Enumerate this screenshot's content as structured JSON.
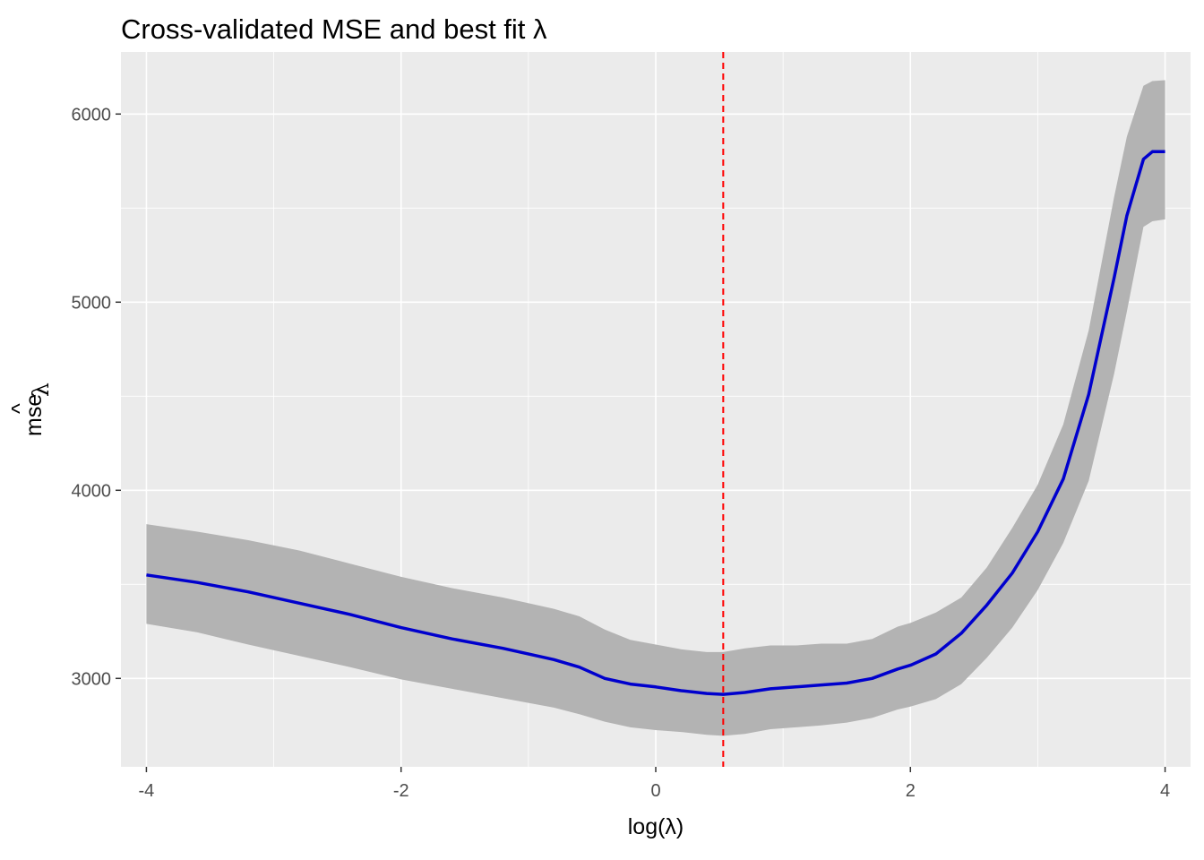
{
  "chart_data": {
    "type": "line",
    "title": "Cross-validated MSE and best fit λ",
    "xlabel": "log(λ)",
    "ylabel": "mse_λ (hat)",
    "ylabel_parts": {
      "base": "mse",
      "hat": "^",
      "sub": "λ"
    },
    "xlim": [
      -4.2,
      4.2
    ],
    "ylim": [
      2530,
      6330
    ],
    "x_ticks": [
      -4,
      -2,
      0,
      2,
      4
    ],
    "x_tick_labels": [
      "-4",
      "-2",
      "0",
      "2",
      "4"
    ],
    "y_ticks": [
      3000,
      4000,
      5000,
      6000
    ],
    "y_tick_labels": [
      "3000",
      "4000",
      "5000",
      "6000"
    ],
    "grid": true,
    "best_lambda_log": 0.53,
    "colors": {
      "panel": "#ebebeb",
      "grid": "#ffffff",
      "ribbon": "#b3b3b3",
      "line": "#0000cd",
      "vline": "#ff0000"
    },
    "series": [
      {
        "x": [
          -4.0,
          -3.6,
          -3.2,
          -2.8,
          -2.4,
          -2.0,
          -1.6,
          -1.2,
          -0.8,
          -0.6,
          -0.4,
          -0.2,
          0.0,
          0.2,
          0.4,
          0.53,
          0.7,
          0.9,
          1.1,
          1.3,
          1.5,
          1.7,
          1.9,
          2.0,
          2.2,
          2.4,
          2.6,
          2.8,
          3.0,
          3.2,
          3.4,
          3.6,
          3.7,
          3.83,
          3.9,
          4.0
        ],
        "mean": [
          3550,
          3510,
          3460,
          3400,
          3340,
          3270,
          3210,
          3160,
          3100,
          3060,
          3000,
          2970,
          2955,
          2935,
          2920,
          2915,
          2925,
          2945,
          2955,
          2965,
          2975,
          3000,
          3050,
          3070,
          3130,
          3240,
          3390,
          3560,
          3780,
          4060,
          4510,
          5130,
          5460,
          5760,
          5800,
          5800
        ],
        "lower": [
          3290,
          3245,
          3180,
          3120,
          3060,
          2995,
          2945,
          2895,
          2845,
          2810,
          2770,
          2740,
          2725,
          2715,
          2700,
          2695,
          2705,
          2730,
          2740,
          2750,
          2765,
          2790,
          2835,
          2850,
          2890,
          2970,
          3110,
          3270,
          3470,
          3720,
          4050,
          4620,
          4950,
          5400,
          5430,
          5440
        ],
        "upper": [
          3820,
          3780,
          3735,
          3680,
          3610,
          3540,
          3480,
          3430,
          3370,
          3330,
          3260,
          3205,
          3180,
          3155,
          3140,
          3140,
          3160,
          3175,
          3175,
          3185,
          3185,
          3210,
          3275,
          3295,
          3350,
          3430,
          3590,
          3800,
          4030,
          4350,
          4850,
          5560,
          5880,
          6150,
          6175,
          6180
        ]
      }
    ]
  }
}
